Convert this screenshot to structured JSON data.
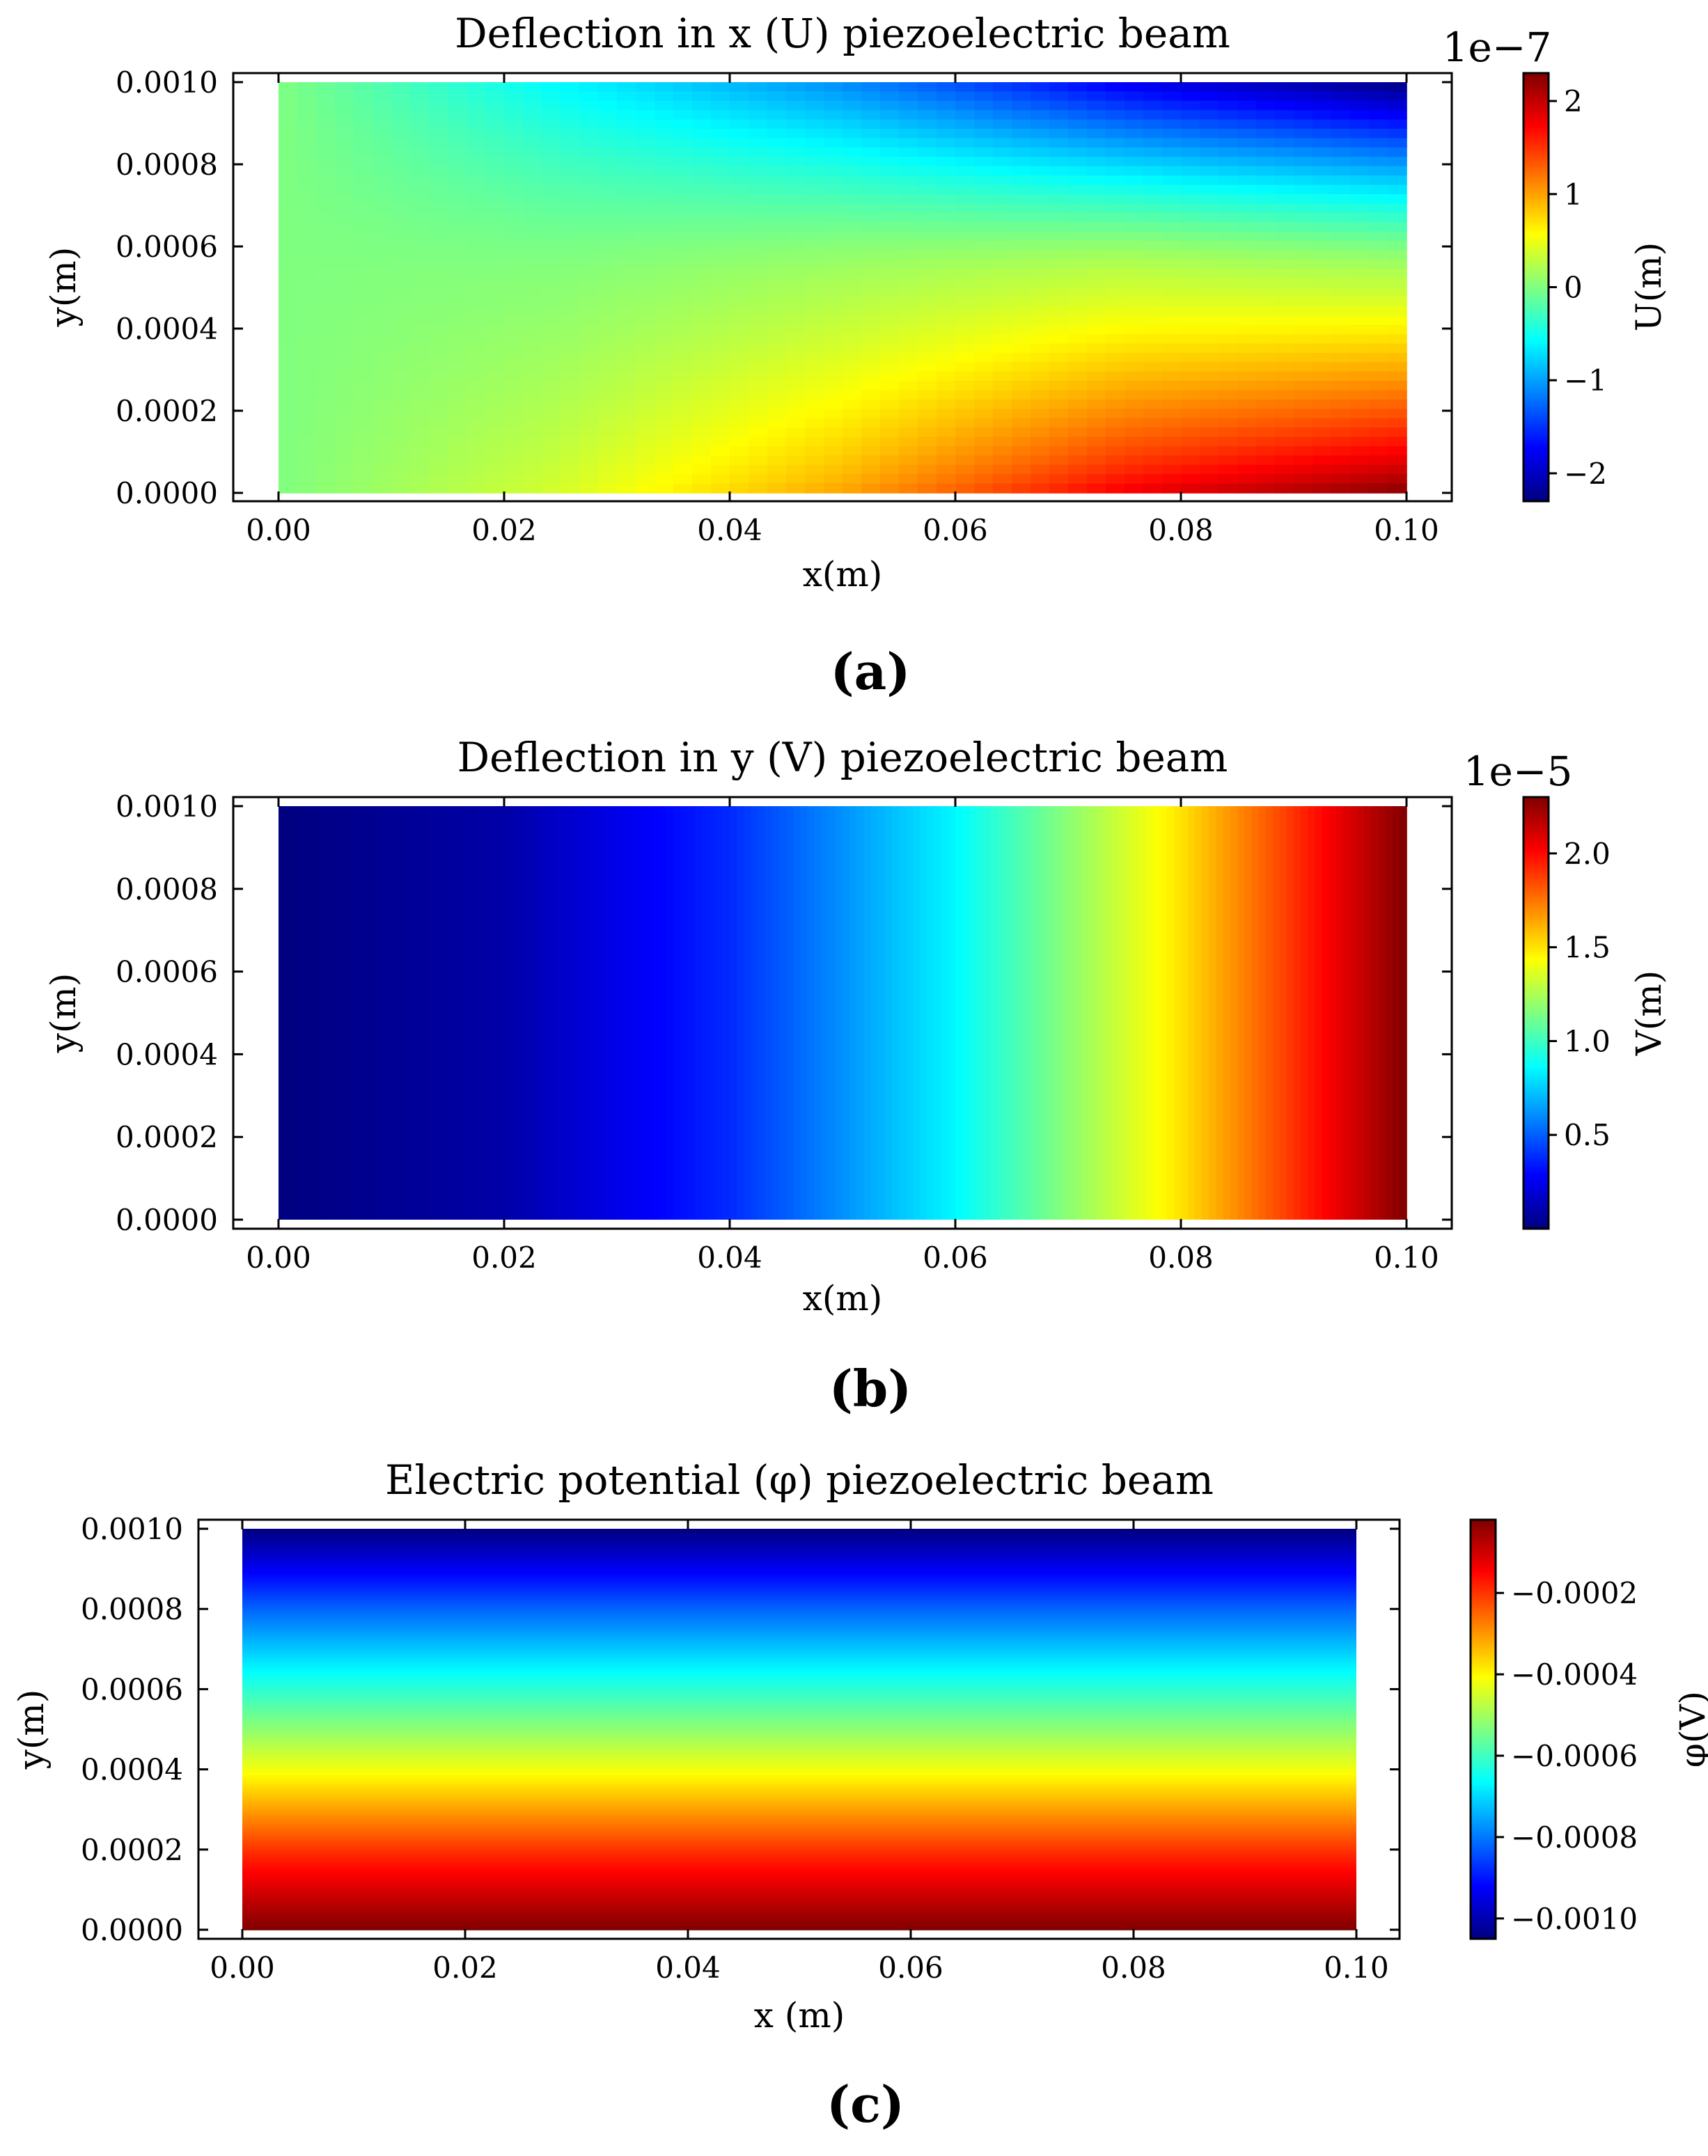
{
  "chart_data": [
    {
      "type": "heatmap",
      "panel_label": "(a)",
      "title": "Deflection in x (U) piezoelectric beam",
      "xlabel": "x(m)",
      "ylabel": "y(m)",
      "xlim": [
        0.0,
        0.1
      ],
      "ylim": [
        0.0,
        0.001
      ],
      "xticks": [
        "0.00",
        "0.02",
        "0.04",
        "0.06",
        "0.08",
        "0.10"
      ],
      "yticks": [
        "0.0000",
        "0.0002",
        "0.0004",
        "0.0006",
        "0.0008",
        "0.0010"
      ],
      "colormap": "jet",
      "colorbar": {
        "label": "U(m)",
        "offset_text": "1e−7",
        "range": [
          -2.3e-07,
          2.3e-07
        ],
        "ticks": [
          "−2",
          "−1",
          "0",
          "1",
          "2"
        ],
        "tick_values": [
          -2,
          -1,
          0,
          1,
          2
        ]
      },
      "field_description_values": {
        "x": [
          0.0,
          0.025,
          0.05,
          0.075,
          0.1
        ],
        "y_bottom": [
          0.0,
          4e-08,
          1e-07,
          1.8e-07,
          2.3e-07
        ],
        "y_mid": [
          0.0,
          5e-09,
          2e-08,
          3.5e-08,
          3e-08
        ],
        "y_top": [
          0.0,
          -6e-08,
          -1.1e-07,
          -1.8e-07,
          -2.3e-07
        ]
      }
    },
    {
      "type": "heatmap",
      "panel_label": "(b)",
      "title": "Deflection in y (V) piezoelectric beam",
      "xlabel": "x(m)",
      "ylabel": "y(m)",
      "xlim": [
        0.0,
        0.1
      ],
      "ylim": [
        0.0,
        0.001
      ],
      "xticks": [
        "0.00",
        "0.02",
        "0.04",
        "0.06",
        "0.08",
        "0.10"
      ],
      "yticks": [
        "0.0000",
        "0.0002",
        "0.0004",
        "0.0006",
        "0.0008",
        "0.0010"
      ],
      "colormap": "jet",
      "colorbar": {
        "label": "V(m)",
        "offset_text": "1e−5",
        "range": [
          0.0,
          2.3e-05
        ],
        "ticks": [
          "0.5",
          "1.0",
          "1.5",
          "2.0"
        ],
        "tick_values": [
          0.5,
          1.0,
          1.5,
          2.0
        ]
      },
      "field_description_values": {
        "x": [
          0.0,
          0.02,
          0.04,
          0.06,
          0.08,
          0.1
        ],
        "v": [
          0.0,
          9e-07,
          3.8e-06,
          8.5e-06,
          1.5e-05,
          2.3e-05
        ]
      }
    },
    {
      "type": "heatmap",
      "panel_label": "(c)",
      "title": "Electric potential (φ) piezoelectric beam",
      "xlabel": "x (m)",
      "ylabel": "y(m)",
      "xlim": [
        0.0,
        0.1
      ],
      "ylim": [
        0.0,
        0.001
      ],
      "xticks": [
        "0.00",
        "0.02",
        "0.04",
        "0.06",
        "0.08",
        "0.10"
      ],
      "yticks": [
        "0.0000",
        "0.0002",
        "0.0004",
        "0.0006",
        "0.0008",
        "0.0010"
      ],
      "colormap": "jet",
      "colorbar": {
        "label": "φ(V)",
        "offset_text": "",
        "range": [
          -0.00105,
          -2e-05
        ],
        "ticks": [
          "−0.0010",
          "−0.0008",
          "−0.0006",
          "−0.0004",
          "−0.0002"
        ],
        "tick_values": [
          -0.001,
          -0.0008,
          -0.0006,
          -0.0004,
          -0.0002
        ]
      },
      "field_description_values": {
        "y": [
          0.0,
          0.0002,
          0.0004,
          0.0006,
          0.0008,
          0.001
        ],
        "phi": [
          -2e-05,
          -0.0002,
          -0.00042,
          -0.00062,
          -0.00082,
          -0.00105
        ]
      }
    }
  ]
}
